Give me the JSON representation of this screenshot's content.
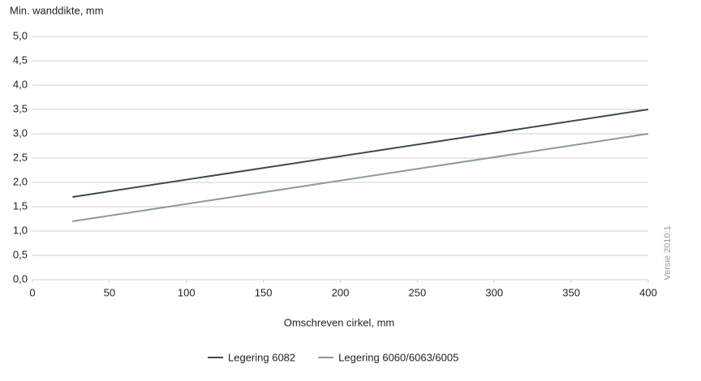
{
  "chart_data": {
    "type": "line",
    "title": "Min. wanddikte, mm",
    "x_label": "Omschreven cirkel, mm",
    "annotation": "Versie 2010:1",
    "x": [
      26,
      400
    ],
    "series": [
      {
        "name": "Legering 6082",
        "color": "#3d4955",
        "values": [
          1.7,
          3.5
        ]
      },
      {
        "name": "Legering 6060/6063/6005",
        "color": "#8d989f",
        "values": [
          1.2,
          3.0
        ]
      }
    ],
    "xlim": [
      0,
      400
    ],
    "xticks": [
      0,
      50,
      100,
      150,
      200,
      250,
      300,
      350,
      400
    ],
    "ylim": [
      0,
      5
    ],
    "yticks": [
      {
        "value": 0,
        "label": "0,0"
      },
      {
        "value": 0.5,
        "label": "0,5"
      },
      {
        "value": 1,
        "label": "1,0"
      },
      {
        "value": 1.5,
        "label": "1,5"
      },
      {
        "value": 2,
        "label": "2,0"
      },
      {
        "value": 2.5,
        "label": "2,5"
      },
      {
        "value": 3,
        "label": "3,0"
      },
      {
        "value": 3.5,
        "label": "3,5"
      },
      {
        "value": 4,
        "label": "4,0"
      },
      {
        "value": 4.5,
        "label": "4,5"
      },
      {
        "value": 5,
        "label": "5,0"
      }
    ],
    "grid": true,
    "legend": "bottom"
  }
}
